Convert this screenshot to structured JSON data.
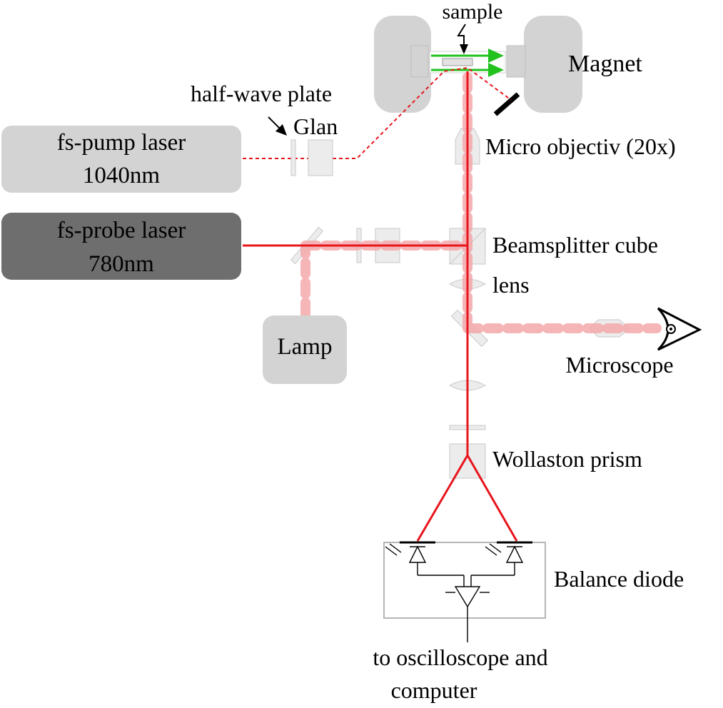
{
  "labels": {
    "sample": "sample",
    "magnet": "Magnet",
    "half_wave_plate": "half-wave plate",
    "glan": "Glan",
    "micro_objective": "Micro objectiv (20x)",
    "beamsplitter": "Beamsplitter cube",
    "lens": "lens",
    "microscope": "Microscope",
    "wollaston": "Wollaston prism",
    "balance_diode": "Balance diode",
    "output_line1": "to oscilloscope and",
    "output_line2": "computer"
  },
  "boxes": {
    "pump_laser": {
      "line1": "fs-pump laser",
      "line2": "1040nm"
    },
    "probe_laser": {
      "line1": "fs-probe laser",
      "line2": "780nm"
    },
    "lamp": {
      "label": "Lamp"
    }
  },
  "colors": {
    "probe_beam": "#e8141c",
    "pump_beam": "#e8141c",
    "illumination_beam": "#f4a9ab",
    "field_arrow": "#22c21e",
    "pump_box": "#d3d3d3",
    "probe_box": "#6e6e6e",
    "lamp_box": "#d3d3d3",
    "optic_fill": "#ececec",
    "optic_stroke": "#c8c8c8"
  }
}
